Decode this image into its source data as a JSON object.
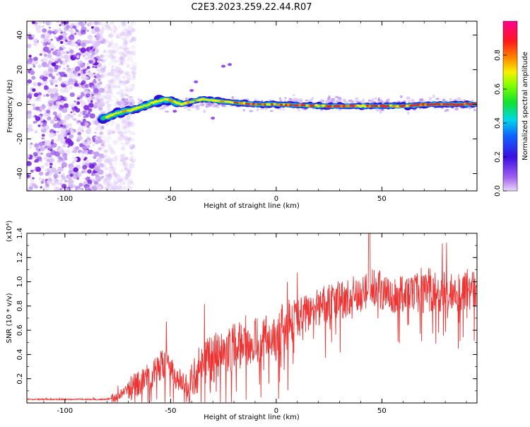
{
  "title": "C2E3.2023.259.22.44.R07",
  "colors": {
    "snr_line": "#ee3333",
    "track_core": "#ee2222",
    "background_scatter": "#8a2be2"
  },
  "chart_data": [
    {
      "type": "heatmap",
      "xlabel": "Height of straight line (km)",
      "ylabel": "Frequency (Hz)",
      "xlim": [
        -118,
        95
      ],
      "ylim": [
        -50,
        48
      ],
      "x_ticks": [
        -100,
        -50,
        0,
        50
      ],
      "y_ticks": [
        -40,
        -20,
        0,
        20,
        40
      ],
      "colorbar": {
        "label": "Normalized spectral amplitude",
        "range": [
          0.0,
          1.0
        ],
        "ticks": [
          0.0,
          0.2,
          0.4,
          0.6,
          0.8
        ],
        "tick_labels": [
          "0.0",
          "0.2",
          "0.4",
          "0.6",
          "0.8"
        ],
        "colormap": "rainbow (purple → blue → cyan → green → yellow → orange → red → magenta)"
      },
      "noise_region": {
        "x": [
          -118,
          -75
        ],
        "y": [
          -50,
          48
        ]
      },
      "ridge": {
        "description": "Doppler track that rises from about -8 Hz to about +5 Hz, then flattens near 0 Hz",
        "x": [
          -82,
          -75,
          -65,
          -58,
          -52,
          -45,
          -35,
          -28,
          -20,
          -10,
          0,
          20,
          40,
          60,
          72,
          95
        ],
        "y": [
          -8,
          -5,
          -2,
          1,
          3,
          0,
          3,
          2,
          1,
          0,
          0,
          -1,
          -1,
          -1,
          0,
          0
        ]
      }
    },
    {
      "type": "line",
      "xlabel": "Height of straight line (km)",
      "ylabel": "SNR (10 * v/v)",
      "scale_note": "(x10⁴)",
      "xlim": [
        -118,
        95
      ],
      "ylim": [
        0.0,
        1.4
      ],
      "x_ticks": [
        -100,
        -50,
        0,
        50
      ],
      "y_ticks": [
        0.2,
        0.4,
        0.6,
        0.8,
        1.0,
        1.2,
        1.4
      ],
      "y_tick_labels": [
        "0.2",
        "0.4",
        "0.6",
        "0.8",
        "1.0",
        "1.2",
        "1.4"
      ],
      "series": [
        {
          "x": [
            -118,
            -100,
            -80,
            -75,
            -70,
            -65,
            -60,
            -55,
            -52,
            -50,
            -45,
            -42,
            -38,
            -35,
            -30,
            -25,
            -20,
            -15,
            -10,
            -5,
            -2,
            0,
            2,
            5,
            10,
            15,
            20,
            25,
            30,
            35,
            40,
            45,
            50,
            55,
            60,
            65,
            70,
            75,
            80,
            85,
            90,
            95
          ],
          "y": [
            0.03,
            0.03,
            0.03,
            0.05,
            0.12,
            0.18,
            0.2,
            0.3,
            0.32,
            0.26,
            0.18,
            0.15,
            0.25,
            0.34,
            0.36,
            0.44,
            0.46,
            0.48,
            0.52,
            0.56,
            0.55,
            0.45,
            0.6,
            0.64,
            0.7,
            0.74,
            0.8,
            0.82,
            0.85,
            0.88,
            0.9,
            0.95,
            0.93,
            0.9,
            0.91,
            0.92,
            0.9,
            0.92,
            0.93,
            0.91,
            0.92,
            0.93
          ],
          "spike_max": 1.4,
          "color": "#ee3333"
        }
      ]
    }
  ]
}
